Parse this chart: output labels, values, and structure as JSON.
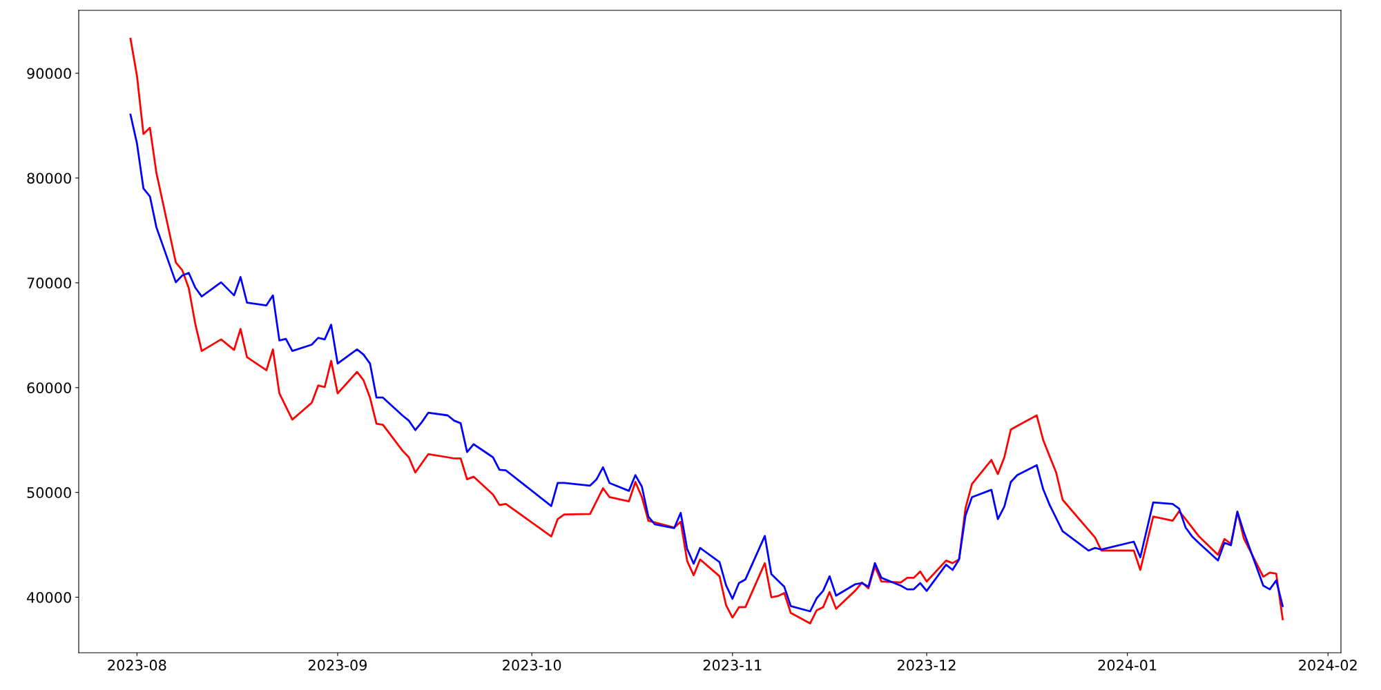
{
  "chart_data": {
    "type": "line",
    "xlim": [
      "2023-07-23",
      "2024-02-03"
    ],
    "ylim": [
      34700,
      96000
    ],
    "xticks": [
      {
        "value": "2023-08-01",
        "label": "2023-08"
      },
      {
        "value": "2023-09-01",
        "label": "2023-09"
      },
      {
        "value": "2023-10-01",
        "label": "2023-10"
      },
      {
        "value": "2023-11-01",
        "label": "2023-11"
      },
      {
        "value": "2023-12-01",
        "label": "2023-12"
      },
      {
        "value": "2024-01-01",
        "label": "2024-01"
      },
      {
        "value": "2024-02-01",
        "label": "2024-02"
      }
    ],
    "yticks": [
      40000,
      50000,
      60000,
      70000,
      80000,
      90000
    ],
    "grid": false,
    "marker": "none",
    "line_style": "solid",
    "series": [
      {
        "color": "#ff0000",
        "x": [
          "2023-07-31",
          "2023-08-01",
          "2023-08-02",
          "2023-08-03",
          "2023-08-04",
          "2023-08-07",
          "2023-08-08",
          "2023-08-09",
          "2023-08-10",
          "2023-08-11",
          "2023-08-14",
          "2023-08-16",
          "2023-08-17",
          "2023-08-18",
          "2023-08-21",
          "2023-08-22",
          "2023-08-23",
          "2023-08-25",
          "2023-08-28",
          "2023-08-29",
          "2023-08-30",
          "2023-08-31",
          "2023-09-01",
          "2023-09-04",
          "2023-09-05",
          "2023-09-06",
          "2023-09-07",
          "2023-09-08",
          "2023-09-11",
          "2023-09-12",
          "2023-09-13",
          "2023-09-15",
          "2023-09-18",
          "2023-09-19",
          "2023-09-20",
          "2023-09-21",
          "2023-09-22",
          "2023-09-25",
          "2023-09-26",
          "2023-09-27",
          "2023-10-04",
          "2023-10-05",
          "2023-10-06",
          "2023-10-10",
          "2023-10-12",
          "2023-10-13",
          "2023-10-16",
          "2023-10-17",
          "2023-10-18",
          "2023-10-19",
          "2023-10-23",
          "2023-10-24",
          "2023-10-25",
          "2023-10-26",
          "2023-10-27",
          "2023-10-30",
          "2023-10-31",
          "2023-11-01",
          "2023-11-02",
          "2023-11-03",
          "2023-11-06",
          "2023-11-07",
          "2023-11-08",
          "2023-11-09",
          "2023-11-10",
          "2023-11-13",
          "2023-11-14",
          "2023-11-15",
          "2023-11-16",
          "2023-11-17",
          "2023-11-20",
          "2023-11-21",
          "2023-11-22",
          "2023-11-23",
          "2023-11-24",
          "2023-11-27",
          "2023-11-28",
          "2023-11-29",
          "2023-11-30",
          "2023-12-01",
          "2023-12-04",
          "2023-12-05",
          "2023-12-06",
          "2023-12-07",
          "2023-12-08",
          "2023-12-11",
          "2023-12-12",
          "2023-12-13",
          "2023-12-14",
          "2023-12-15",
          "2023-12-18",
          "2023-12-19",
          "2023-12-21",
          "2023-12-22",
          "2023-12-27",
          "2023-12-28",
          "2024-01-02",
          "2024-01-03",
          "2024-01-05",
          "2024-01-08",
          "2024-01-09",
          "2024-01-10",
          "2024-01-12",
          "2024-01-15",
          "2024-01-16",
          "2024-01-17",
          "2024-01-18",
          "2024-01-19",
          "2024-01-22",
          "2024-01-23",
          "2024-01-24",
          "2024-01-25"
        ],
        "values": [
          93300,
          89750,
          84200,
          84800,
          80500,
          71950,
          71200,
          69500,
          66100,
          63500,
          64600,
          63600,
          65600,
          62900,
          61650,
          63650,
          59450,
          56950,
          58550,
          60200,
          60050,
          62550,
          59450,
          61500,
          60700,
          59050,
          56550,
          56450,
          54000,
          53350,
          51900,
          53650,
          53350,
          53250,
          53250,
          51250,
          51500,
          49800,
          48800,
          48900,
          45800,
          47450,
          47900,
          47950,
          50400,
          49550,
          49150,
          51000,
          49550,
          47300,
          46650,
          47200,
          43450,
          42100,
          43600,
          42000,
          39250,
          38050,
          39050,
          39050,
          43250,
          40000,
          40100,
          40400,
          38500,
          37500,
          38750,
          39050,
          40500,
          38900,
          40650,
          41400,
          40850,
          42950,
          41500,
          41400,
          41850,
          41850,
          42450,
          41500,
          43500,
          43250,
          43600,
          48500,
          50800,
          53100,
          51750,
          53350,
          56000,
          56350,
          57350,
          55000,
          51900,
          49300,
          45700,
          44450,
          44450,
          42600,
          47700,
          47300,
          48200,
          47450,
          45850,
          44050,
          45550,
          45100,
          48150,
          45600,
          41950,
          42350,
          42250,
          37900
        ]
      },
      {
        "color": "#0000ff",
        "x": [
          "2023-07-31",
          "2023-08-01",
          "2023-08-02",
          "2023-08-03",
          "2023-08-04",
          "2023-08-07",
          "2023-08-08",
          "2023-08-09",
          "2023-08-10",
          "2023-08-11",
          "2023-08-14",
          "2023-08-16",
          "2023-08-17",
          "2023-08-18",
          "2023-08-21",
          "2023-08-22",
          "2023-08-23",
          "2023-08-24",
          "2023-08-25",
          "2023-08-28",
          "2023-08-29",
          "2023-08-30",
          "2023-08-31",
          "2023-09-01",
          "2023-09-04",
          "2023-09-05",
          "2023-09-06",
          "2023-09-07",
          "2023-09-08",
          "2023-09-11",
          "2023-09-12",
          "2023-09-13",
          "2023-09-14",
          "2023-09-15",
          "2023-09-18",
          "2023-09-19",
          "2023-09-20",
          "2023-09-21",
          "2023-09-22",
          "2023-09-25",
          "2023-09-26",
          "2023-09-27",
          "2023-10-04",
          "2023-10-05",
          "2023-10-06",
          "2023-10-10",
          "2023-10-11",
          "2023-10-12",
          "2023-10-13",
          "2023-10-16",
          "2023-10-17",
          "2023-10-18",
          "2023-10-19",
          "2023-10-20",
          "2023-10-23",
          "2023-10-24",
          "2023-10-25",
          "2023-10-26",
          "2023-10-27",
          "2023-10-30",
          "2023-10-31",
          "2023-11-01",
          "2023-11-02",
          "2023-11-03",
          "2023-11-06",
          "2023-11-07",
          "2023-11-08",
          "2023-11-09",
          "2023-11-10",
          "2023-11-13",
          "2023-11-14",
          "2023-11-15",
          "2023-11-16",
          "2023-11-17",
          "2023-11-20",
          "2023-11-21",
          "2023-11-22",
          "2023-11-23",
          "2023-11-24",
          "2023-11-27",
          "2023-11-28",
          "2023-11-29",
          "2023-11-30",
          "2023-12-01",
          "2023-12-04",
          "2023-12-05",
          "2023-12-06",
          "2023-12-07",
          "2023-12-08",
          "2023-12-11",
          "2023-12-12",
          "2023-12-13",
          "2023-12-14",
          "2023-12-15",
          "2023-12-18",
          "2023-12-19",
          "2023-12-20",
          "2023-12-22",
          "2023-12-26",
          "2023-12-27",
          "2023-12-28",
          "2024-01-02",
          "2024-01-03",
          "2024-01-05",
          "2024-01-08",
          "2024-01-09",
          "2024-01-10",
          "2024-01-11",
          "2024-01-12",
          "2024-01-15",
          "2024-01-16",
          "2024-01-17",
          "2024-01-18",
          "2024-01-19",
          "2024-01-22",
          "2024-01-23",
          "2024-01-24",
          "2024-01-25"
        ],
        "values": [
          86050,
          83300,
          79000,
          78250,
          75300,
          70050,
          70700,
          70950,
          69550,
          68700,
          70050,
          68800,
          70550,
          68100,
          67850,
          68800,
          64500,
          64650,
          63500,
          64100,
          64750,
          64600,
          66000,
          62300,
          63650,
          63150,
          62300,
          59050,
          59050,
          57350,
          56850,
          55950,
          56700,
          57600,
          57350,
          56850,
          56600,
          53850,
          54600,
          53350,
          52150,
          52100,
          48700,
          50900,
          50900,
          50650,
          51250,
          52400,
          50900,
          50150,
          51650,
          50550,
          47700,
          46950,
          46600,
          48050,
          44600,
          43200,
          44700,
          43350,
          41150,
          39850,
          41350,
          41700,
          45850,
          42200,
          41600,
          41000,
          39150,
          38650,
          39900,
          40600,
          42000,
          40150,
          41250,
          41350,
          41000,
          43250,
          41850,
          41100,
          40750,
          40750,
          41350,
          40600,
          43100,
          42600,
          43600,
          47800,
          49550,
          50250,
          47450,
          48650,
          51000,
          51650,
          52600,
          50300,
          48800,
          46300,
          44450,
          44700,
          44550,
          45300,
          43800,
          49050,
          48900,
          48450,
          46650,
          45800,
          45200,
          43500,
          45200,
          44950,
          48150,
          46200,
          41100,
          40750,
          41600,
          39150
        ]
      }
    ]
  }
}
